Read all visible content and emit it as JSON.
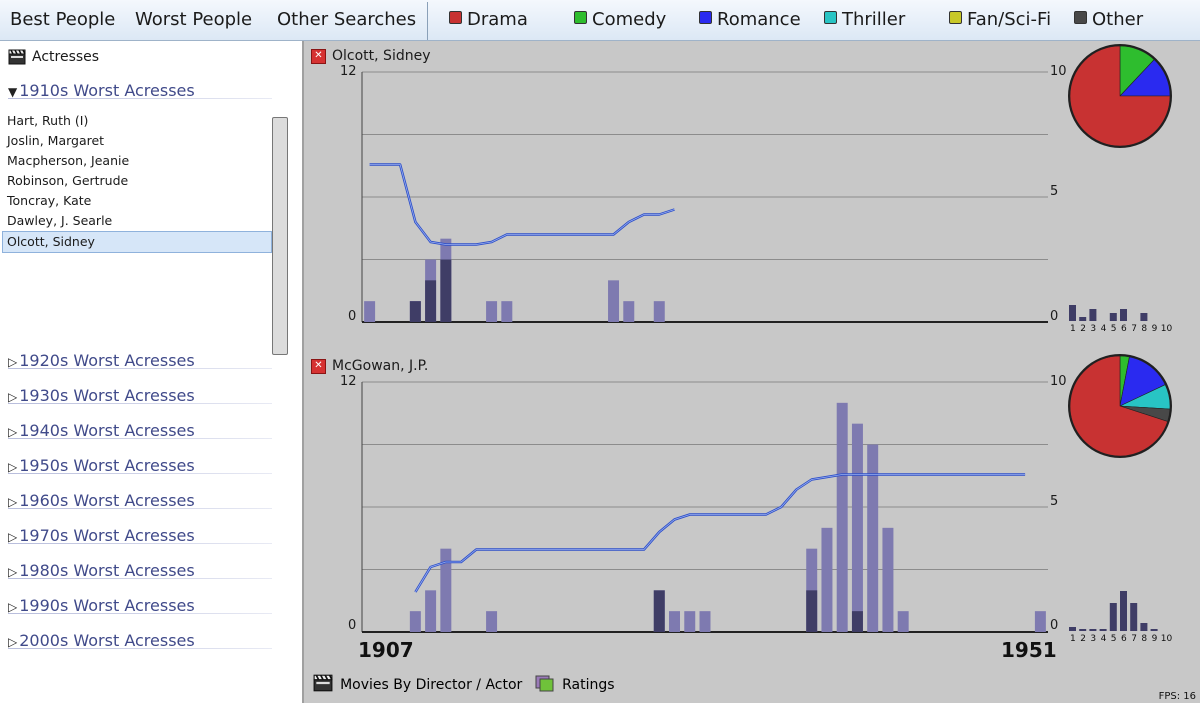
{
  "nav": {
    "items": [
      "Best People",
      "Worst People",
      "Other Searches"
    ]
  },
  "genres": [
    {
      "label": "Drama",
      "color": "#c83232"
    },
    {
      "label": "Comedy",
      "color": "#2ebd2e"
    },
    {
      "label": "Romance",
      "color": "#2a2af0"
    },
    {
      "label": "Thriller",
      "color": "#28c4c4"
    },
    {
      "label": "Fan/Sci-Fi",
      "color": "#c8c828"
    },
    {
      "label": "Other",
      "color": "#484848"
    }
  ],
  "sidebar": {
    "title": "Actresses",
    "expanded_decade": "1910s Worst Acresses",
    "actors": [
      "Hart, Ruth (I)",
      "Joslin, Margaret",
      "Macpherson, Jeanie",
      "Robinson, Gertrude",
      "Toncray, Kate",
      "Dawley, J. Searle",
      "Olcott, Sidney"
    ],
    "selected_actor": "Olcott, Sidney",
    "collapsed_decades": [
      "1920s Worst Acresses",
      "1930s Worst Acresses",
      "1940s Worst Acresses",
      "1950s Worst Acresses",
      "1960s Worst Acresses",
      "1970s Worst Acresses",
      "1980s Worst Acresses",
      "1990s Worst Acresses",
      "2000s Worst Acresses"
    ]
  },
  "year_start": "1907",
  "year_end": "1951",
  "panels": [
    {
      "name": "Olcott, Sidney",
      "left_axis": [
        "12",
        "0"
      ],
      "right_axis": [
        "10",
        "5",
        "0"
      ],
      "year_start": 1907,
      "year_end": 1951,
      "bar_max": 12,
      "rating_max": 10,
      "bars_dark": [
        0,
        0,
        0,
        1,
        2,
        3,
        0,
        0,
        0,
        0,
        0,
        0,
        0,
        0,
        0,
        0,
        0,
        0,
        0,
        0,
        0,
        0,
        0,
        0,
        0,
        0,
        0,
        0,
        0,
        0,
        0,
        0,
        0,
        0,
        0,
        0,
        0,
        0,
        0,
        0,
        0,
        0,
        0,
        0,
        0
      ],
      "bars_light": [
        1,
        0,
        0,
        1,
        3,
        4,
        0,
        0,
        1,
        1,
        0,
        0,
        0,
        0,
        0,
        0,
        2,
        1,
        0,
        1,
        0,
        0,
        0,
        0,
        0,
        0,
        0,
        0,
        0,
        0,
        0,
        0,
        0,
        0,
        0,
        0,
        0,
        0,
        0,
        0,
        0,
        0,
        0,
        0,
        0
      ],
      "rating_line": [
        {
          "year": 1907.5,
          "rating": 6.3
        },
        {
          "year": 1909.5,
          "rating": 6.3
        },
        {
          "year": 1910.5,
          "rating": 4.0
        },
        {
          "year": 1911.5,
          "rating": 3.2
        },
        {
          "year": 1912.5,
          "rating": 3.1
        },
        {
          "year": 1914.5,
          "rating": 3.1
        },
        {
          "year": 1915.5,
          "rating": 3.2
        },
        {
          "year": 1916.5,
          "rating": 3.5
        },
        {
          "year": 1922.5,
          "rating": 3.5
        },
        {
          "year": 1923.5,
          "rating": 3.5
        },
        {
          "year": 1924.5,
          "rating": 4.0
        },
        {
          "year": 1925.5,
          "rating": 4.3
        },
        {
          "year": 1926.5,
          "rating": 4.3
        },
        {
          "year": 1927.5,
          "rating": 4.5
        }
      ],
      "pie": [
        {
          "genre": "Drama",
          "value": 75,
          "color": "#c83232"
        },
        {
          "genre": "Comedy",
          "value": 12,
          "color": "#2ebd2e"
        },
        {
          "genre": "Romance",
          "value": 13,
          "color": "#2a2af0"
        }
      ],
      "hist_labels": [
        "1",
        "2",
        "3",
        "4",
        "5",
        "6",
        "7",
        "8",
        "9",
        "10"
      ],
      "hist_values": [
        8,
        2,
        6,
        0,
        4,
        6,
        0,
        4,
        0,
        0
      ]
    },
    {
      "name": "McGowan, J.P.",
      "left_axis": [
        "12",
        "0"
      ],
      "right_axis": [
        "10",
        "5",
        "0"
      ],
      "year_start": 1907,
      "year_end": 1951,
      "bar_max": 12,
      "rating_max": 10,
      "bars_dark": [
        0,
        0,
        0,
        0,
        0,
        0,
        0,
        0,
        0,
        0,
        0,
        0,
        0,
        0,
        0,
        0,
        0,
        0,
        0,
        2,
        0,
        0,
        0,
        0,
        0,
        0,
        0,
        0,
        0,
        2,
        0,
        0,
        1,
        0,
        0,
        0,
        0,
        0,
        0,
        0,
        0,
        0,
        0,
        0,
        0
      ],
      "bars_light": [
        0,
        0,
        0,
        1,
        2,
        4,
        0,
        0,
        1,
        0,
        0,
        0,
        0,
        0,
        0,
        0,
        0,
        0,
        0,
        2,
        1,
        1,
        1,
        0,
        0,
        0,
        0,
        0,
        0,
        4,
        5,
        11,
        10,
        9,
        5,
        1,
        0,
        0,
        0,
        0,
        0,
        0,
        0,
        0,
        1
      ],
      "rating_line": [
        {
          "year": 1910.5,
          "rating": 1.6
        },
        {
          "year": 1911.5,
          "rating": 2.6
        },
        {
          "year": 1912.5,
          "rating": 2.8
        },
        {
          "year": 1913.5,
          "rating": 2.8
        },
        {
          "year": 1914.5,
          "rating": 3.3
        },
        {
          "year": 1925.5,
          "rating": 3.3
        },
        {
          "year": 1926.5,
          "rating": 4.0
        },
        {
          "year": 1927.5,
          "rating": 4.5
        },
        {
          "year": 1928.5,
          "rating": 4.7
        },
        {
          "year": 1929.5,
          "rating": 4.7
        },
        {
          "year": 1933.5,
          "rating": 4.7
        },
        {
          "year": 1934.5,
          "rating": 5.0
        },
        {
          "year": 1935.5,
          "rating": 5.7
        },
        {
          "year": 1936.5,
          "rating": 6.1
        },
        {
          "year": 1937.5,
          "rating": 6.2
        },
        {
          "year": 1938.5,
          "rating": 6.3
        },
        {
          "year": 1950.5,
          "rating": 6.3
        }
      ],
      "pie": [
        {
          "genre": "Drama",
          "value": 70,
          "color": "#c83232"
        },
        {
          "genre": "Comedy",
          "value": 3,
          "color": "#2ebd2e"
        },
        {
          "genre": "Romance",
          "value": 15,
          "color": "#2a2af0"
        },
        {
          "genre": "Thriller",
          "value": 8,
          "color": "#28c4c4"
        },
        {
          "genre": "Other",
          "value": 4,
          "color": "#484848"
        }
      ],
      "hist_labels": [
        "1",
        "2",
        "3",
        "4",
        "5",
        "6",
        "7",
        "8",
        "9",
        "10"
      ],
      "hist_values": [
        2,
        1,
        1,
        1,
        14,
        20,
        14,
        4,
        1,
        0
      ]
    }
  ],
  "footer": {
    "movies_by": "Movies By Director / Actor",
    "ratings": "Ratings"
  },
  "fps": "FPS: 16"
}
